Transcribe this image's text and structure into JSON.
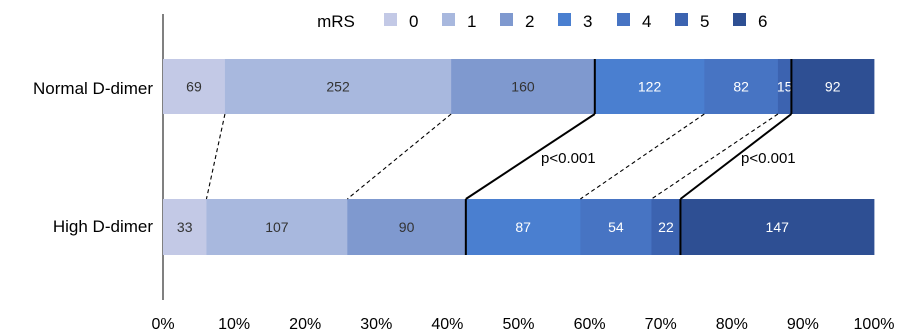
{
  "chart_data": {
    "type": "bar",
    "orientation": "horizontal",
    "stacked": "percent",
    "categories": [
      "Normal D-dimer",
      "High D-dimer"
    ],
    "legend_title": "mRS",
    "legend_placement": "top",
    "series": [
      {
        "name": "0",
        "values": [
          69,
          33
        ],
        "color": "#c3c9e6"
      },
      {
        "name": "1",
        "values": [
          252,
          107
        ],
        "color": "#a8b8de"
      },
      {
        "name": "2",
        "values": [
          160,
          90
        ],
        "color": "#7f99cf"
      },
      {
        "name": "3",
        "values": [
          122,
          87
        ],
        "color": "#4a7fd0"
      },
      {
        "name": "4",
        "values": [
          82,
          54
        ],
        "color": "#4774c3"
      },
      {
        "name": "5",
        "values": [
          15,
          22
        ],
        "color": "#3c63b0"
      },
      {
        "name": "6",
        "values": [
          92,
          147
        ],
        "color": "#2e4f93"
      }
    ],
    "xlim": [
      0,
      100
    ],
    "x_ticks": [
      "0%",
      "10%",
      "20%",
      "30%",
      "40%",
      "50%",
      "60%",
      "70%",
      "80%",
      "90%",
      "100%"
    ],
    "annotations": [
      "p<0.001",
      "p<0.001"
    ],
    "grid": false
  }
}
